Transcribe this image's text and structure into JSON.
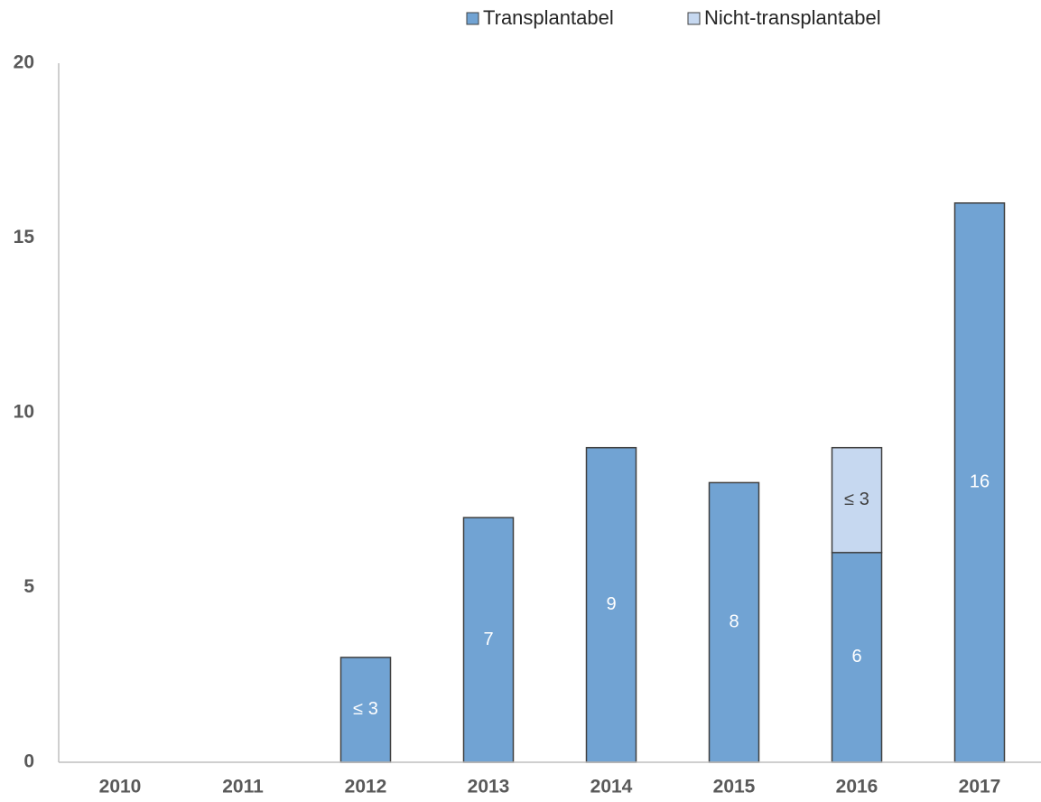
{
  "chart_data": {
    "type": "stacked_bar",
    "categories": [
      "2010",
      "2011",
      "2012",
      "2013",
      "2014",
      "2015",
      "2016",
      "2017"
    ],
    "series": [
      {
        "name": "Transplantabel",
        "color": "#71a3d3",
        "label_color": "#ffffff",
        "values": [
          0,
          0,
          3,
          7,
          9,
          8,
          6,
          16
        ],
        "value_labels": [
          null,
          null,
          "≤ 3",
          "7",
          "9",
          "8",
          "6",
          "16"
        ]
      },
      {
        "name": "Nicht-transplantabel",
        "color": "#c6d8f0",
        "label_color": "#404040",
        "values": [
          0,
          0,
          0,
          0,
          0,
          0,
          3,
          0
        ],
        "value_labels": [
          null,
          null,
          null,
          null,
          null,
          null,
          "≤ 3",
          null
        ]
      }
    ],
    "ylim": [
      0,
      20
    ],
    "yticks": [
      0,
      5,
      10,
      15,
      20
    ],
    "grid": false,
    "legend": "top"
  }
}
